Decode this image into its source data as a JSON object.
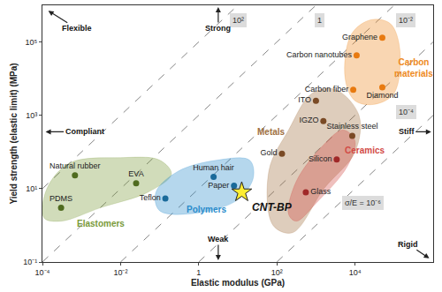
{
  "chart_data": {
    "type": "scatter",
    "log": true,
    "grid": false,
    "x_label": "Elastic modulus (GPa)",
    "y_label": "Yield strength (elastic limit) (MPa)",
    "xlim": [
      0.0001,
      1000000
    ],
    "ylim": [
      0.1,
      1000000
    ],
    "xticks": [
      {
        "value": 0.0001,
        "label": "10⁻⁴"
      },
      {
        "value": 0.01,
        "label": "10⁻²"
      },
      1,
      {
        "value": 100,
        "label": "10²"
      },
      {
        "value": 10000,
        "label": "10⁴"
      }
    ],
    "yticks": [
      {
        "value": 0.1,
        "label": "10⁻¹"
      },
      {
        "value": 10,
        "label": "10¹"
      },
      {
        "value": 1000,
        "label": "10³"
      },
      {
        "value": 100000,
        "label": "10⁵"
      }
    ],
    "guide_lines": [
      {
        "label": "10²",
        "line_style": "dashed",
        "x": [
          0.0001,
          10
        ],
        "y": [
          10,
          1000000
        ]
      },
      {
        "label": "1",
        "line_style": "dashed",
        "x": [
          0.0001,
          1000
        ],
        "y": [
          0.1,
          1000000
        ]
      },
      {
        "label": "10⁻²",
        "line_style": "dashed",
        "x": [
          0.01,
          100000
        ],
        "y": [
          0.1,
          1000000
        ]
      },
      {
        "label": "10⁻⁴",
        "line_style": "dashed",
        "x": [
          1,
          1000000
        ],
        "y": [
          0.1,
          100000
        ]
      },
      {
        "label": "σ/E = 10⁻⁶",
        "line_style": "dashed",
        "x": [
          100,
          1000000
        ],
        "y": [
          0.1,
          1000
        ]
      }
    ],
    "direction_labels": [
      "Flexible",
      "Strong",
      "Compliant",
      "Stiff",
      "Weak",
      "Rigid"
    ],
    "groups": [
      {
        "name": "Elastomers",
        "color": "#7a9a3a",
        "region": {
          "x": [
            0.00011,
            0.00013,
            0.0005,
            0.01,
            0.1,
            0.2,
            0.05,
            0.003,
            0.0003
          ],
          "y": [
            1.6,
            10,
            50,
            70,
            60,
            25,
            8,
            3,
            1.3
          ]
        },
        "materials": [
          {
            "name": "PDMS",
            "color": "#4f6b1f",
            "x": 0.0003,
            "y": 3
          },
          {
            "name": "Natural rubber",
            "color": "#4f6b1f",
            "x": 0.00068,
            "y": 23
          },
          {
            "name": "EVA",
            "color": "#4f6b1f",
            "x": 0.025,
            "y": 14
          }
        ]
      },
      {
        "name": "Polymers",
        "color": "#2a8ccc",
        "region": {
          "x": [
            0.1,
            0.08,
            0.3,
            3,
            20,
            25,
            10,
            1
          ],
          "y": [
            2.5,
            8,
            30,
            60,
            60,
            20,
            5,
            2.2
          ]
        },
        "materials": [
          {
            "name": "Teflon",
            "color": "#1a6a9a",
            "x": 0.14,
            "y": 5.4
          },
          {
            "name": "Human hair",
            "color": "#1a6a9a",
            "x": 2.4,
            "y": 21
          },
          {
            "name": "Paper",
            "color": "#1a6a9a",
            "x": 8,
            "y": 12
          }
        ]
      },
      {
        "name": "Metals",
        "color": "#a0703f",
        "region": {
          "x": [
            80,
            63,
            200,
            800,
            3200,
            12600,
            10000,
            1600,
            250
          ],
          "y": [
            1,
            32,
            400,
            4000,
            5000,
            1000,
            100,
            10,
            0.63
          ]
        },
        "materials": [
          {
            "name": "Gold",
            "color": "#7a4a25",
            "x": 135,
            "y": 90
          },
          {
            "name": "Stainless steel",
            "color": "#7a4a25",
            "x": 8500,
            "y": 275
          },
          {
            "name": "IGZO",
            "color": "#7a4a25",
            "x": 1550,
            "y": 700
          },
          {
            "name": "ITO",
            "color": "#7a4a25",
            "x": 1000,
            "y": 2500
          }
        ]
      },
      {
        "name": "Ceramics",
        "color": "#d24a45",
        "region": {
          "x": [
            200,
            316,
            1600,
            5000,
            10000,
            6300,
            1000,
            316
          ],
          "y": [
            2,
            16,
            160,
            400,
            200,
            40,
            4,
            1.3
          ]
        },
        "materials": [
          {
            "name": "Silicon",
            "color": "#a02828",
            "x": 3400,
            "y": 63
          },
          {
            "name": "Glass",
            "color": "#a02828",
            "x": 550,
            "y": 8
          }
        ]
      },
      {
        "name": "Carbon materials",
        "color": "#ee8a22",
        "region": {
          "x": [
            5600,
            8000,
            25000,
            80000,
            140000,
            100000,
            32000,
            10000
          ],
          "y": [
            10000,
            160000,
            400000,
            316000,
            63000,
            4000,
            2000,
            2500
          ]
        },
        "materials": [
          {
            "name": "Graphene",
            "color": "#e87a10",
            "x": 50000,
            "y": 130000
          },
          {
            "name": "Carbon nanotubes",
            "color": "#e87a10",
            "x": 11000,
            "y": 43000
          },
          {
            "name": "Carbon fiber",
            "color": "#e87a10",
            "x": 9000,
            "y": 5000
          },
          {
            "name": "Diamond",
            "color": "#e87a10",
            "x": 50000,
            "y": 5800
          }
        ]
      }
    ],
    "highlight": {
      "name": "CNT-BP",
      "color": "#ffee33",
      "marker": "star",
      "x": 12.6,
      "y": 8
    }
  }
}
